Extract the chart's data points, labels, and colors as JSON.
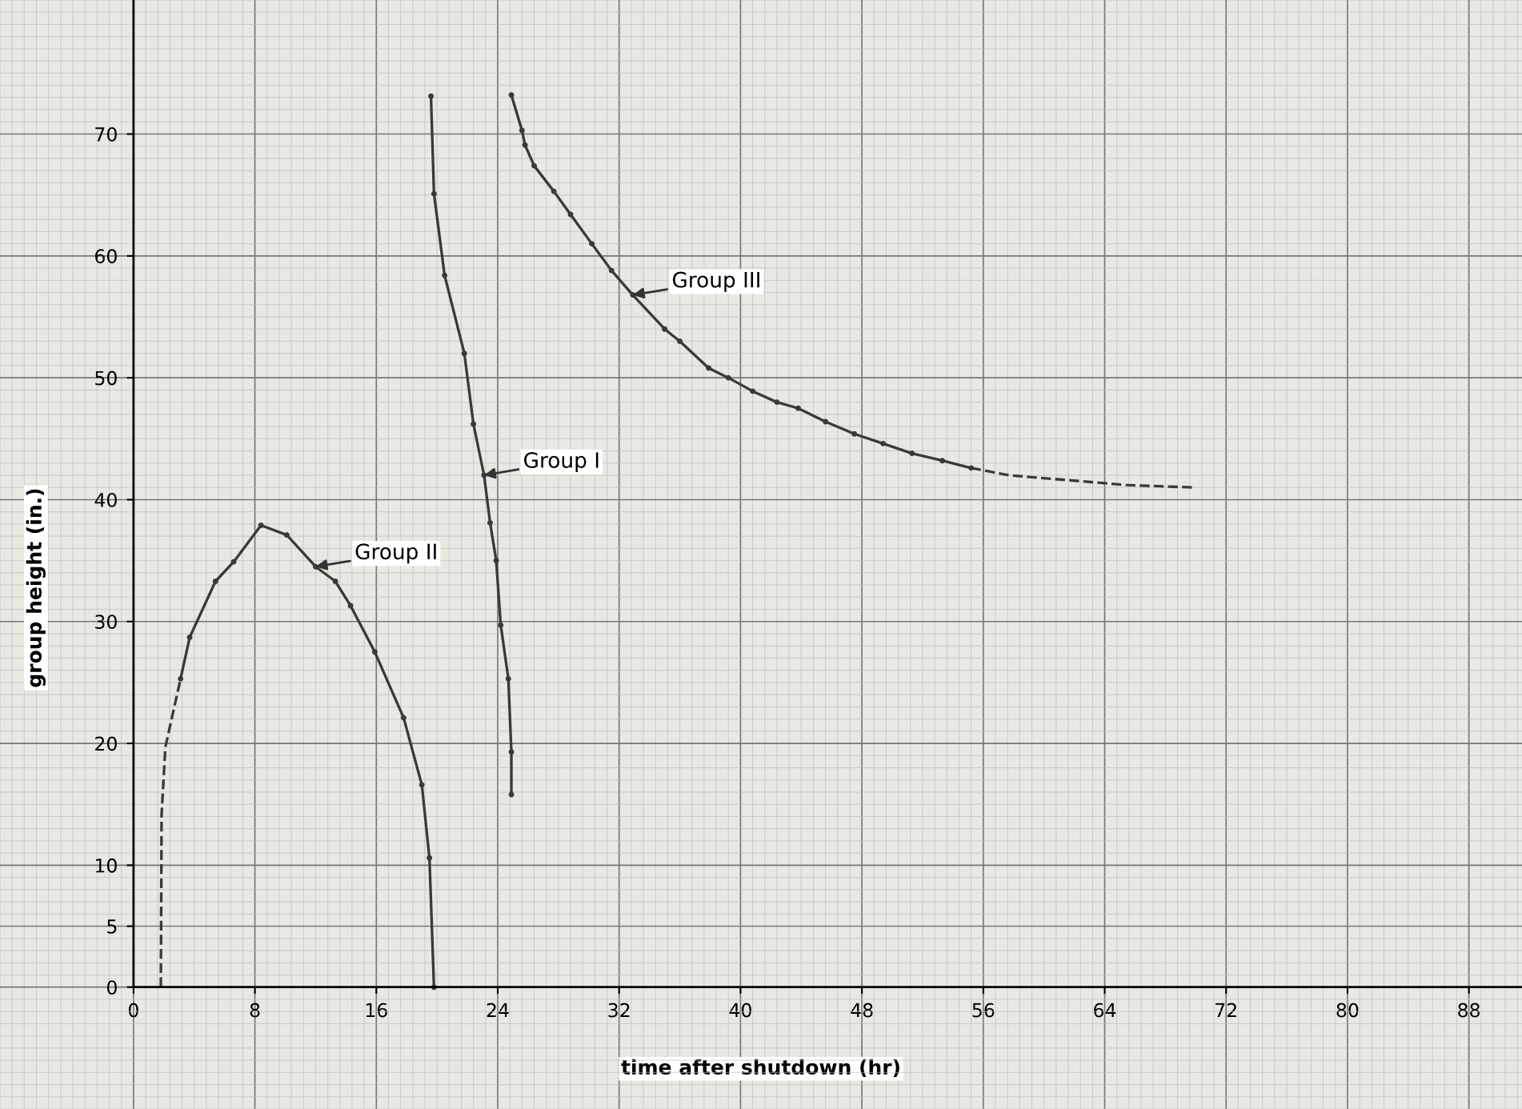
{
  "chart_data": {
    "type": "line",
    "xlabel": "time after shutdown (hr)",
    "ylabel": "group height (in.)",
    "xlim": [
      -8.8,
      91.5
    ],
    "ylim": [
      -10,
      81
    ],
    "xticks": [
      0,
      8,
      16,
      24,
      32,
      40,
      48,
      56,
      64,
      72,
      80,
      88
    ],
    "yticks": [
      0,
      5,
      10,
      20,
      30,
      40,
      50,
      60,
      70
    ],
    "grid": true,
    "marker": "circle",
    "series": [
      {
        "color": "#3a3a3a",
        "line_style": "dashed",
        "marker": "none",
        "x": [
          1.8,
          1.85,
          2.1,
          3.1
        ],
        "values": [
          0,
          14.2,
          19.7,
          25.3
        ]
      },
      {
        "color": "#3a3a3a",
        "line_style": "solid",
        "x": [
          3.1,
          3.7,
          5.4,
          6.6,
          8.4,
          10.1,
          12.0,
          13.3,
          14.3,
          15.9,
          17.8,
          19.0,
          19.5,
          19.8
        ],
        "values": [
          25.3,
          28.7,
          33.3,
          34.9,
          37.9,
          37.1,
          34.5,
          33.3,
          31.3,
          27.5,
          22.1,
          16.6,
          10.6,
          0
        ]
      },
      {
        "color": "#3a3a3a",
        "line_style": "solid",
        "x": [
          19.6,
          19.8,
          20.5,
          21.8,
          22.4,
          23.1,
          23.5,
          23.9,
          24.2,
          24.7,
          24.9,
          24.9
        ],
        "values": [
          73.1,
          65.1,
          58.4,
          52.0,
          46.2,
          42.0,
          38.1,
          35.0,
          29.7,
          25.3,
          19.3,
          15.8
        ]
      },
      {
        "color": "#3a3a3a",
        "line_style": "solid",
        "x": [
          24.9,
          25.6,
          25.8,
          26.4,
          27.7,
          28.8,
          30.2,
          31.5,
          32.9,
          35.0,
          36.0,
          37.9,
          39.2,
          40.8,
          42.4,
          43.8,
          45.6,
          47.5,
          49.4,
          51.3,
          53.3,
          55.2
        ],
        "values": [
          73.2,
          70.3,
          69.1,
          67.4,
          65.3,
          63.4,
          61.0,
          58.8,
          56.8,
          54.0,
          53.0,
          50.8,
          50.0,
          48.9,
          48.0,
          47.5,
          46.4,
          45.4,
          44.6,
          43.8,
          43.2,
          42.6
        ]
      },
      {
        "color": "#3a3a3a",
        "line_style": "dashed",
        "marker": "none",
        "x": [
          55.2,
          57.7,
          61.6,
          65.4,
          69.9
        ],
        "values": [
          42.6,
          42.0,
          41.6,
          41.2,
          41.0
        ]
      }
    ],
    "annotations": [
      {
        "text": "Group II",
        "x": 12.0,
        "y": 34.5
      },
      {
        "text": "Group I",
        "x": 23.1,
        "y": 42.0
      },
      {
        "text": "Group III",
        "x": 32.9,
        "y": 56.8
      }
    ]
  }
}
